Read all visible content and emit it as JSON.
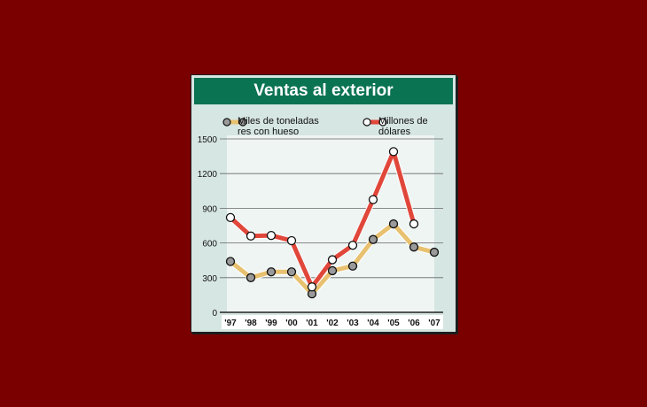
{
  "chart_data": {
    "type": "line",
    "title": "Ventas al exterior",
    "xlabel": "",
    "ylabel": "",
    "categories": [
      "'97",
      "'98",
      "'99",
      "'00",
      "'01",
      "'02",
      "'03",
      "'04",
      "'05",
      "'06",
      "'07"
    ],
    "series": [
      {
        "name": "Miles de toneladas res con hueso",
        "color": "#e8c170",
        "marker": "#9a9a9a",
        "values": [
          440,
          300,
          350,
          350,
          160,
          360,
          400,
          630,
          765,
          565,
          520
        ]
      },
      {
        "name": "Millones de dólares",
        "color": "#e0473a",
        "marker": "#ffffff",
        "values": [
          820,
          660,
          665,
          620,
          220,
          455,
          580,
          975,
          1390,
          765,
          null
        ]
      }
    ],
    "yticks": [
      0,
      300,
      600,
      900,
      1200,
      1500
    ],
    "ylim": [
      0,
      1500
    ],
    "grid": true,
    "legend_position": "top"
  },
  "legend": {
    "s1_line1": "Miles de toneladas",
    "s1_line2": "res con hueso",
    "s2_line1": "Millones de",
    "s2_line2": "dólares"
  }
}
